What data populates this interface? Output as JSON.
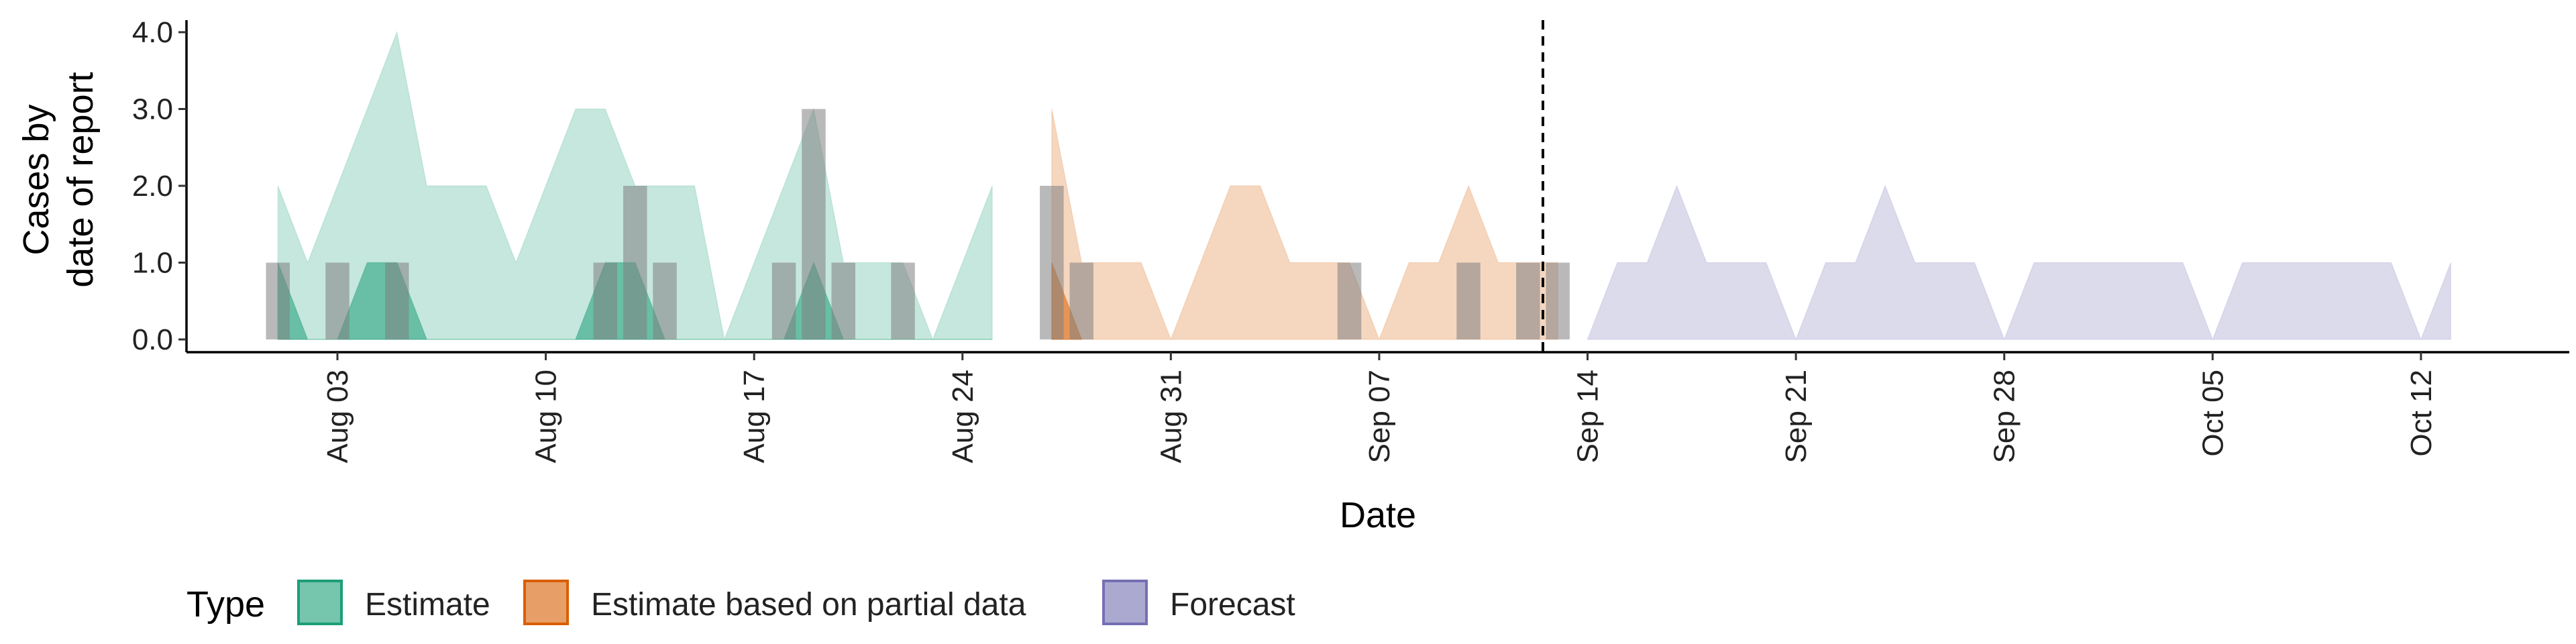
{
  "chart_data": {
    "type": "area",
    "title": "",
    "xlabel": "Date",
    "ylabel": "Cases by\ndate of report",
    "x_ticks": [
      "Aug 03",
      "Aug 10",
      "Aug 17",
      "Aug 24",
      "Aug 31",
      "Sep 07",
      "Sep 14",
      "Sep 21",
      "Sep 28",
      "Oct 05",
      "Oct 12"
    ],
    "y_ticks": [
      "0.0",
      "1.0",
      "2.0",
      "3.0",
      "4.0"
    ],
    "xlim": [
      "2020-07-27",
      "2020-10-16"
    ],
    "ylim": [
      0,
      4.2
    ],
    "forecast_start": "2020-09-13",
    "legend": {
      "title": "Type",
      "position": "bottom",
      "entries": [
        {
          "label": "Estimate",
          "fill": "#1B9E77",
          "stroke": "#1B9E77"
        },
        {
          "label": "Estimate based on partial data",
          "fill": "#D95F02",
          "stroke": "#D95F02"
        },
        {
          "label": "Forecast",
          "fill": "#7570B3",
          "stroke": "#7570B3"
        }
      ]
    },
    "series": [
      {
        "name": "Estimate",
        "band": "outer",
        "color": "#1B9E77",
        "dates": [
          "2020-08-01",
          "2020-08-02",
          "2020-08-03",
          "2020-08-04",
          "2020-08-05",
          "2020-08-06",
          "2020-08-07",
          "2020-08-08",
          "2020-08-09",
          "2020-08-10",
          "2020-08-11",
          "2020-08-12",
          "2020-08-13",
          "2020-08-14",
          "2020-08-15",
          "2020-08-16",
          "2020-08-17",
          "2020-08-18",
          "2020-08-19",
          "2020-08-20",
          "2020-08-21",
          "2020-08-22",
          "2020-08-23",
          "2020-08-24",
          "2020-08-25",
          "2020-08-26"
        ],
        "lower": [
          0,
          0,
          0,
          0,
          0,
          0,
          0,
          0,
          0,
          0,
          0,
          0,
          0,
          0,
          0,
          0,
          0,
          0,
          0,
          0,
          0,
          0,
          0,
          0,
          0,
          0
        ],
        "upper": [
          2,
          1,
          2,
          3,
          4,
          2,
          2,
          2,
          1,
          2,
          3,
          3,
          2,
          2,
          2,
          0,
          1,
          2,
          3,
          1,
          1,
          1,
          0,
          1,
          2,
          null
        ]
      },
      {
        "name": "Estimate",
        "band": "inner",
        "color": "#1B9E77",
        "dates": [
          "2020-08-01",
          "2020-08-02",
          "2020-08-03",
          "2020-08-04",
          "2020-08-05",
          "2020-08-06",
          "2020-08-07",
          "2020-08-08",
          "2020-08-09",
          "2020-08-10",
          "2020-08-11",
          "2020-08-12",
          "2020-08-13",
          "2020-08-14",
          "2020-08-15",
          "2020-08-16",
          "2020-08-17",
          "2020-08-18",
          "2020-08-19",
          "2020-08-20",
          "2020-08-21",
          "2020-08-22",
          "2020-08-23",
          "2020-08-24",
          "2020-08-25"
        ],
        "lower": [
          0,
          0,
          0,
          0,
          0,
          0,
          0,
          0,
          0,
          0,
          0,
          0,
          0,
          0,
          0,
          0,
          0,
          0,
          0,
          0,
          0,
          0,
          0,
          0,
          0
        ],
        "upper": [
          1,
          0,
          0,
          1,
          1,
          0,
          0,
          0,
          0,
          0,
          0,
          1,
          1,
          0,
          0,
          0,
          0,
          0,
          1,
          0,
          0,
          0,
          0,
          0,
          0
        ]
      },
      {
        "name": "Estimate based on partial data",
        "band": "outer",
        "color": "#D95F02",
        "dates": [
          "2020-08-27",
          "2020-08-28",
          "2020-08-29",
          "2020-08-30",
          "2020-08-31",
          "2020-09-01",
          "2020-09-02",
          "2020-09-03",
          "2020-09-04",
          "2020-09-05",
          "2020-09-06",
          "2020-09-07",
          "2020-09-08",
          "2020-09-09",
          "2020-09-10",
          "2020-09-11",
          "2020-09-12",
          "2020-09-13"
        ],
        "lower": [
          0,
          0,
          0,
          0,
          0,
          0,
          0,
          0,
          0,
          0,
          0,
          0,
          0,
          0,
          0,
          0,
          0,
          0
        ],
        "upper": [
          3,
          1,
          1,
          1,
          0,
          1,
          2,
          2,
          1,
          1,
          1,
          0,
          1,
          1,
          2,
          1,
          1,
          1
        ]
      },
      {
        "name": "Estimate based on partial data",
        "band": "inner",
        "color": "#D95F02",
        "dates": [
          "2020-08-27",
          "2020-08-28"
        ],
        "lower": [
          0,
          0
        ],
        "upper": [
          1,
          0
        ]
      },
      {
        "name": "Forecast",
        "band": "outer",
        "color": "#7570B3",
        "dates": [
          "2020-09-14",
          "2020-09-15",
          "2020-09-16",
          "2020-09-17",
          "2020-09-18",
          "2020-09-19",
          "2020-09-20",
          "2020-09-21",
          "2020-09-22",
          "2020-09-23",
          "2020-09-24",
          "2020-09-25",
          "2020-09-26",
          "2020-09-27",
          "2020-09-28",
          "2020-09-29",
          "2020-09-30",
          "2020-10-01",
          "2020-10-02",
          "2020-10-03",
          "2020-10-04",
          "2020-10-05",
          "2020-10-06",
          "2020-10-07",
          "2020-10-08",
          "2020-10-09",
          "2020-10-10",
          "2020-10-11",
          "2020-10-12",
          "2020-10-13"
        ],
        "lower": [
          0,
          0,
          0,
          0,
          0,
          0,
          0,
          0,
          0,
          0,
          0,
          0,
          0,
          0,
          0,
          0,
          0,
          0,
          0,
          0,
          0,
          0,
          0,
          0,
          0,
          0,
          0,
          0,
          0,
          0
        ],
        "upper": [
          0,
          1,
          1,
          2,
          1,
          1,
          1,
          0,
          1,
          1,
          2,
          1,
          1,
          1,
          0,
          1,
          1,
          1,
          1,
          1,
          1,
          0,
          1,
          1,
          1,
          1,
          1,
          1,
          0,
          1
        ]
      }
    ],
    "reported_cases": {
      "color": "#7F7F7F",
      "dates": [
        "2020-08-01",
        "2020-08-03",
        "2020-08-05",
        "2020-08-12",
        "2020-08-13",
        "2020-08-14",
        "2020-08-18",
        "2020-08-19",
        "2020-08-20",
        "2020-08-22",
        "2020-08-27",
        "2020-08-28",
        "2020-09-06",
        "2020-09-10",
        "2020-09-12",
        "2020-09-13"
      ],
      "values": [
        1,
        1,
        1,
        1,
        2,
        1,
        1,
        3,
        1,
        1,
        2,
        1,
        1,
        1,
        1,
        1
      ]
    }
  }
}
